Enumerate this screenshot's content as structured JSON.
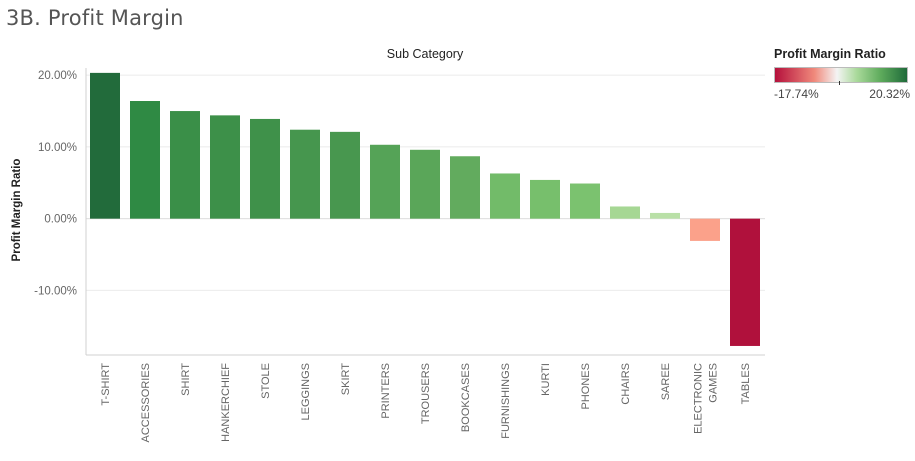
{
  "page": {
    "title": "3B. Profit Margin"
  },
  "legend": {
    "title": "Profit Margin Ratio",
    "min_label": "-17.74%",
    "max_label": "20.32%",
    "colors": {
      "negative": "#b5103c",
      "neutral": "#f4f4f4",
      "positive": "#1f6b3a"
    }
  },
  "chart_data": {
    "type": "bar",
    "title": "Sub Category",
    "xlabel": "",
    "ylabel": "Profit Margin Ratio",
    "ylim": [
      -19,
      21
    ],
    "yticks": [
      20,
      10,
      0,
      -10
    ],
    "ytick_labels": [
      "20.00%",
      "10.00%",
      "0.00%",
      "-10.00%"
    ],
    "grid": true,
    "categories": [
      "T-SHIRT",
      "ACCESSORIES",
      "SHIRT",
      "HANKERCHIEF",
      "STOLE",
      "LEGGINGS",
      "SKIRT",
      "PRINTERS",
      "TROUSERS",
      "BOOKCASES",
      "FURNISHINGS",
      "KURTI",
      "PHONES",
      "CHAIRS",
      "SAREE",
      "ELECTRONIC GAMES",
      "TABLES"
    ],
    "category_lines": [
      [
        "T-SHIRT"
      ],
      [
        "ACCESSORIES"
      ],
      [
        "SHIRT"
      ],
      [
        "HANKERCHIEF"
      ],
      [
        "STOLE"
      ],
      [
        "LEGGINGS"
      ],
      [
        "SKIRT"
      ],
      [
        "PRINTERS"
      ],
      [
        "TROUSERS"
      ],
      [
        "BOOKCASES"
      ],
      [
        "FURNISHINGS"
      ],
      [
        "KURTI"
      ],
      [
        "PHONES"
      ],
      [
        "CHAIRS"
      ],
      [
        "SAREE"
      ],
      [
        "ELECTRONIC",
        "GAMES"
      ],
      [
        "TABLES"
      ]
    ],
    "values": [
      20.32,
      16.4,
      15.0,
      14.4,
      13.9,
      12.4,
      12.1,
      10.3,
      9.6,
      8.7,
      6.3,
      5.4,
      4.9,
      1.7,
      0.8,
      -3.1,
      -17.74
    ],
    "colors": [
      "#226b3b",
      "#2f8a44",
      "#3a8f48",
      "#3d9049",
      "#3f914a",
      "#46964e",
      "#48974f",
      "#55a357",
      "#5aa659",
      "#62ab5e",
      "#72bb69",
      "#77bf6c",
      "#7bc26f",
      "#a6d794",
      "#b9e0a7",
      "#fba18a",
      "#b0113c"
    ]
  }
}
